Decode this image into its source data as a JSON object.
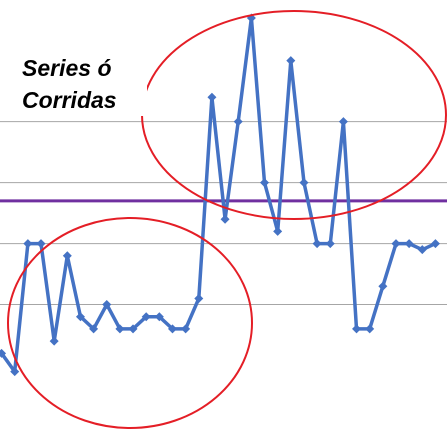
{
  "annotation": {
    "line1": "Series ó",
    "line2": "Corridas"
  },
  "colors": {
    "series": "#4472C4",
    "centerline": "#7030A0",
    "gridline": "#A6A6A6",
    "circle": "#E41E26"
  },
  "chart_data": {
    "type": "line",
    "title": "",
    "xlabel": "",
    "ylabel": "",
    "grid": true,
    "gridlines_y": [
      3.8,
      4.8,
      5.8,
      6.8
    ],
    "centerline": 5.5,
    "ylim": [
      2.3,
      8.5
    ],
    "xlim": [
      0.5,
      34.5
    ],
    "series": [
      {
        "x": [
          1,
          2,
          3,
          4,
          5,
          6,
          7,
          8,
          9,
          10,
          11,
          12,
          13,
          14,
          15,
          16,
          17,
          18,
          19,
          20,
          21,
          22,
          23,
          24,
          25,
          26,
          27,
          28,
          29,
          30,
          31,
          32,
          33,
          34
        ],
        "values": [
          3.0,
          2.7,
          4.8,
          4.8,
          3.2,
          4.6,
          3.6,
          3.4,
          3.8,
          3.4,
          3.4,
          3.6,
          3.6,
          3.4,
          3.4,
          3.9,
          7.2,
          5.2,
          6.8,
          8.5,
          5.8,
          5.0,
          7.8,
          5.8,
          4.8,
          4.8,
          6.8,
          3.4,
          3.4,
          4.1,
          4.8,
          4.8,
          4.7,
          4.8
        ]
      }
    ],
    "highlights": [
      {
        "shape": "ellipse",
        "label": "run-below-center",
        "x_range": [
          1,
          16
        ]
      },
      {
        "shape": "ellipse",
        "label": "run-above-center",
        "x_range": [
          17,
          28
        ]
      }
    ]
  }
}
